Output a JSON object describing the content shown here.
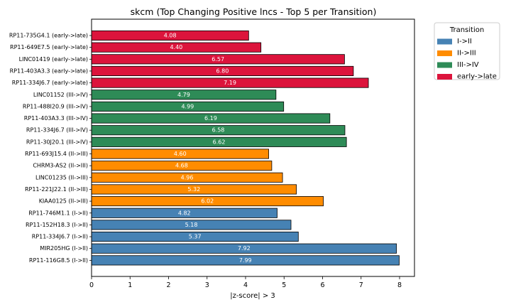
{
  "chart_data": {
    "type": "bar",
    "orientation": "horizontal",
    "title": "skcm (Top Changing Positive lncs - Top 5 per Transition)",
    "xlabel": "|z-score| > 3",
    "ylabel": "",
    "xlim": [
      0,
      8.4
    ],
    "xticks": [
      0,
      1,
      2,
      3,
      4,
      5,
      6,
      7,
      8
    ],
    "grid": false,
    "legend": {
      "title": "Transition",
      "placement": "outside-top-right",
      "entries": [
        {
          "name": "I->II",
          "color": "#4682b4"
        },
        {
          "name": "II->III",
          "color": "#ff8c00"
        },
        {
          "name": "III->IV",
          "color": "#2e8b57"
        },
        {
          "name": "early->late",
          "color": "#dc143c"
        }
      ]
    },
    "bars": [
      {
        "label": "RP11-735G4.1 (early->late)",
        "value": 4.08,
        "value_label": "4.08",
        "series": "early->late"
      },
      {
        "label": "RP11-649E7.5 (early->late)",
        "value": 4.4,
        "value_label": "4.40",
        "series": "early->late"
      },
      {
        "label": "LINC01419 (early->late)",
        "value": 6.57,
        "value_label": "6.57",
        "series": "early->late"
      },
      {
        "label": "RP11-403A3.3 (early->late)",
        "value": 6.8,
        "value_label": "6.80",
        "series": "early->late"
      },
      {
        "label": "RP11-334J6.7 (early->late)",
        "value": 7.19,
        "value_label": "7.19",
        "series": "early->late"
      },
      {
        "label": "LINC01152 (III->IV)",
        "value": 4.79,
        "value_label": "4.79",
        "series": "III->IV"
      },
      {
        "label": "RP11-488I20.9 (III->IV)",
        "value": 4.99,
        "value_label": "4.99",
        "series": "III->IV"
      },
      {
        "label": "RP11-403A3.3 (III->IV)",
        "value": 6.19,
        "value_label": "6.19",
        "series": "III->IV"
      },
      {
        "label": "RP11-334J6.7 (III->IV)",
        "value": 6.58,
        "value_label": "6.58",
        "series": "III->IV"
      },
      {
        "label": "RP11-30J20.1 (III->IV)",
        "value": 6.62,
        "value_label": "6.62",
        "series": "III->IV"
      },
      {
        "label": "RP11-693J15.4 (II->III)",
        "value": 4.6,
        "value_label": "4.60",
        "series": "II->III"
      },
      {
        "label": "CHRM3-AS2 (II->III)",
        "value": 4.68,
        "value_label": "4.68",
        "series": "II->III"
      },
      {
        "label": "LINC01235 (II->III)",
        "value": 4.96,
        "value_label": "4.96",
        "series": "II->III"
      },
      {
        "label": "RP11-221J22.1 (II->III)",
        "value": 5.32,
        "value_label": "5.32",
        "series": "II->III"
      },
      {
        "label": "KIAA0125 (II->III)",
        "value": 6.02,
        "value_label": "6.02",
        "series": "II->III"
      },
      {
        "label": "RP11-746M1.1 (I->II)",
        "value": 4.82,
        "value_label": "4.82",
        "series": "I->II"
      },
      {
        "label": "RP11-152H18.3 (I->II)",
        "value": 5.18,
        "value_label": "5.18",
        "series": "I->II"
      },
      {
        "label": "RP11-334J6.7 (I->II)",
        "value": 5.37,
        "value_label": "5.37",
        "series": "I->II"
      },
      {
        "label": "MIR205HG (I->II)",
        "value": 7.92,
        "value_label": "7.92",
        "series": "I->II"
      },
      {
        "label": "RP11-116G8.5 (I->II)",
        "value": 7.99,
        "value_label": "7.99",
        "series": "I->II"
      }
    ]
  }
}
